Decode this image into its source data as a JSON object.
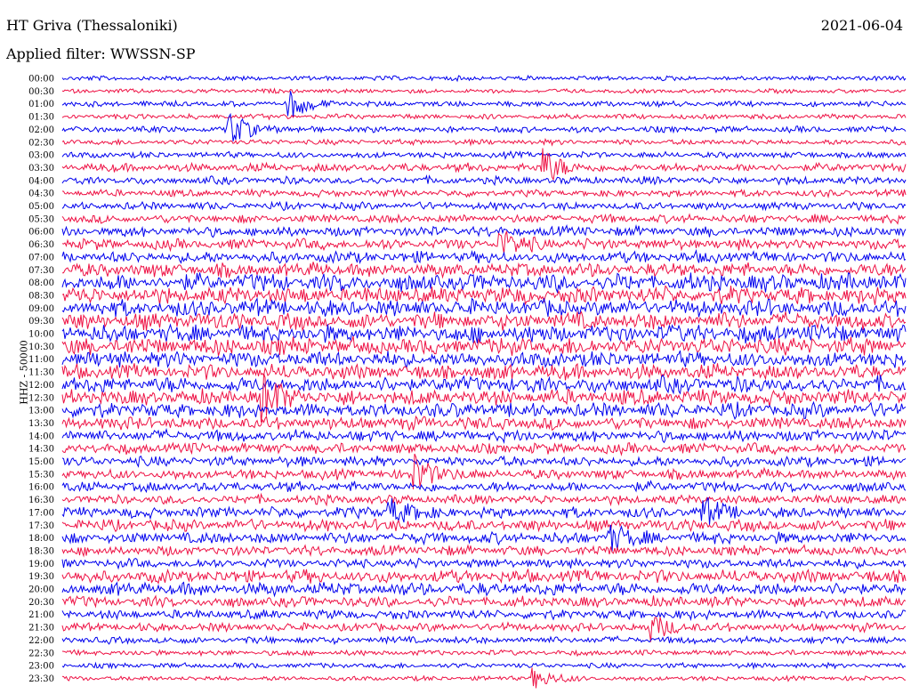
{
  "header": {
    "station": "HT Griva (Thessaloniki)",
    "filter": "Applied filter: WWSSN-SP",
    "date": "2021-06-04",
    "channel": "HHZ - 50000"
  },
  "colors": {
    "trace_a": "#0000ee",
    "trace_b": "#ee1144"
  },
  "chart_data": {
    "type": "line",
    "title": "HT Griva (Thessaloniki)",
    "subtitle": "Applied filter: WWSSN-SP",
    "ylabel": "HHZ - 50000",
    "xlabel": "",
    "grid": false,
    "legend": "none",
    "series_colors": [
      "#0000ee",
      "#ee1144"
    ],
    "rows": [
      "00:00",
      "00:30",
      "01:00",
      "01:30",
      "02:00",
      "02:30",
      "03:00",
      "03:30",
      "04:00",
      "04:30",
      "05:00",
      "05:30",
      "06:00",
      "06:30",
      "07:00",
      "07:30",
      "08:00",
      "08:30",
      "09:00",
      "09:30",
      "10:00",
      "10:30",
      "11:00",
      "11:30",
      "12:00",
      "12:30",
      "13:00",
      "13:30",
      "14:00",
      "14:30",
      "15:00",
      "15:30",
      "16:00",
      "16:30",
      "17:00",
      "17:30",
      "18:00",
      "18:30",
      "19:00",
      "19:30",
      "20:00",
      "20:30",
      "21:00",
      "21:30",
      "22:00",
      "22:30",
      "23:00",
      "23:30"
    ],
    "activity": [
      0.15,
      0.12,
      0.2,
      0.18,
      0.25,
      0.2,
      0.25,
      0.4,
      0.35,
      0.3,
      0.35,
      0.4,
      0.5,
      0.55,
      0.6,
      0.75,
      1.0,
      0.95,
      0.95,
      0.95,
      1.0,
      1.0,
      0.9,
      0.85,
      0.9,
      0.85,
      0.8,
      0.7,
      0.6,
      0.55,
      0.5,
      0.5,
      0.5,
      0.45,
      0.55,
      0.6,
      0.6,
      0.5,
      0.45,
      0.7,
      0.7,
      0.55,
      0.45,
      0.4,
      0.3,
      0.2,
      0.18,
      0.15
    ],
    "events": [
      {
        "row": "01:00",
        "at": 0.27,
        "amp": 1.8
      },
      {
        "row": "02:00",
        "at": 0.2,
        "amp": 2.0
      },
      {
        "row": "03:30",
        "at": 0.57,
        "amp": 2.2
      },
      {
        "row": "06:30",
        "at": 0.52,
        "amp": 1.6
      },
      {
        "row": "12:30",
        "at": 0.24,
        "amp": 2.5
      },
      {
        "row": "15:30",
        "at": 0.42,
        "amp": 2.2
      },
      {
        "row": "17:00",
        "at": 0.39,
        "amp": 1.6
      },
      {
        "row": "17:00",
        "at": 0.76,
        "amp": 1.6
      },
      {
        "row": "18:00",
        "at": 0.65,
        "amp": 1.5
      },
      {
        "row": "21:30",
        "at": 0.7,
        "amp": 1.4
      },
      {
        "row": "23:30",
        "at": 0.56,
        "amp": 1.2
      }
    ]
  }
}
